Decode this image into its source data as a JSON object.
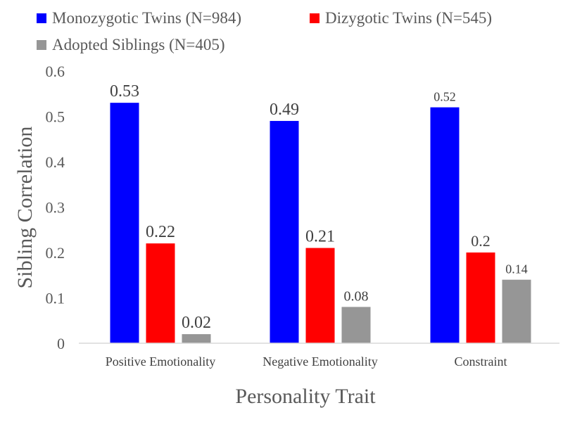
{
  "chart_data": {
    "type": "bar",
    "title": "",
    "xlabel": "Personality Trait",
    "ylabel": "Sibling Correlation",
    "categories": [
      "Positive Emotionality",
      "Negative Emotionality",
      "Constraint"
    ],
    "series": [
      {
        "name": "Monozygotic Twins (N=984)",
        "color": "#0000ff",
        "values": [
          0.53,
          0.49,
          0.52
        ],
        "labels": [
          "0.53",
          "0.49",
          "0.52"
        ]
      },
      {
        "name": "Dizygotic Twins (N=545)",
        "color": "#ff0000",
        "values": [
          0.22,
          0.21,
          0.2
        ],
        "labels": [
          "0.22",
          "0.21",
          "0.2"
        ]
      },
      {
        "name": "Adopted Siblings (N=405)",
        "color": "#969696",
        "values": [
          0.02,
          0.08,
          0.14
        ],
        "labels": [
          "0.02",
          "0.08",
          "0.14"
        ]
      }
    ],
    "ylim": [
      0,
      0.6
    ],
    "yticks": [
      "0",
      "0.1",
      "0.2",
      "0.3",
      "0.4",
      "0.5",
      "0.6"
    ],
    "grid": false,
    "legend_position": "top"
  }
}
